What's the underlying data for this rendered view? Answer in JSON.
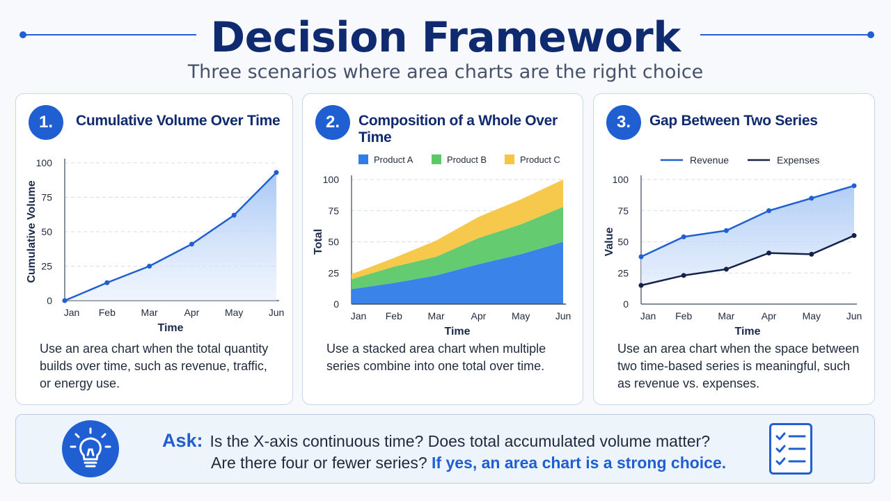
{
  "header": {
    "title": "Decision Framework",
    "subtitle": "Three scenarios where area charts are the right choice"
  },
  "cards": [
    {
      "number": "1.",
      "title": "Cumulative Volume Over Time",
      "description": "Use an area chart when the total quantity builds over time, such as revenue, traffic, or energy use."
    },
    {
      "number": "2.",
      "title": "Composition of a Whole Over Time",
      "description": "Use a stacked area chart when multiple series combine into one total over time."
    },
    {
      "number": "3.",
      "title": "Gap Between Two Series",
      "description": "Use an area chart when the space between two time-based series is meaningful, such as revenue vs. expenses."
    }
  ],
  "ask": {
    "label": "Ask:",
    "line1": "Is the X-axis continuous time? Does total accumulated volume matter?",
    "line2_prefix": "Are there four or fewer series?",
    "line2_answer": "If yes, an area chart is a strong choice."
  },
  "icons": {
    "ask": "lightbulb-icon",
    "checklist": "checklist-icon"
  },
  "colors": {
    "accent": "#1f5fd1",
    "navy": "#0f2a6e",
    "product_a": "#2f7de8",
    "product_b": "#5cc868",
    "product_c": "#f6c542",
    "expenses": "#14224a"
  },
  "chart_data": [
    {
      "type": "area",
      "categories": [
        "Jan",
        "Feb",
        "Mar",
        "Apr",
        "May",
        "Jun"
      ],
      "series": [
        {
          "values": [
            0,
            13,
            25,
            41,
            62,
            93
          ]
        }
      ],
      "xlabel": "Time",
      "ylabel": "Cumulative Volume",
      "ylim": [
        0,
        100
      ],
      "yticks": [
        0,
        25,
        50,
        75,
        100
      ],
      "grid": "horizontal-dashed"
    },
    {
      "type": "area",
      "stacked": true,
      "categories": [
        "Jan",
        "Feb",
        "Mar",
        "Apr",
        "May",
        "Jun"
      ],
      "series": [
        {
          "name": "Product A",
          "values": [
            12,
            17,
            23,
            32,
            40,
            50
          ]
        },
        {
          "name": "Product B",
          "values": [
            8,
            13,
            15,
            21,
            24,
            28
          ]
        },
        {
          "name": "Product C",
          "values": [
            4,
            7,
            13,
            17,
            20,
            22
          ]
        }
      ],
      "xlabel": "Time",
      "ylabel": "Total",
      "ylim": [
        0,
        100
      ],
      "yticks": [
        0,
        25,
        50,
        75,
        100
      ],
      "legend": "top",
      "grid": "horizontal-dashed"
    },
    {
      "type": "area",
      "categories": [
        "Jan",
        "Feb",
        "Mar",
        "Apr",
        "May",
        "Jun"
      ],
      "series": [
        {
          "name": "Revenue",
          "values": [
            38,
            54,
            59,
            75,
            85,
            95
          ]
        },
        {
          "name": "Expenses",
          "values": [
            15,
            23,
            28,
            41,
            40,
            55
          ]
        }
      ],
      "xlabel": "Time",
      "ylabel": "Value",
      "ylim": [
        0,
        100
      ],
      "yticks": [
        0,
        25,
        50,
        75,
        100
      ],
      "legend": "top",
      "grid": "horizontal-dashed"
    }
  ]
}
